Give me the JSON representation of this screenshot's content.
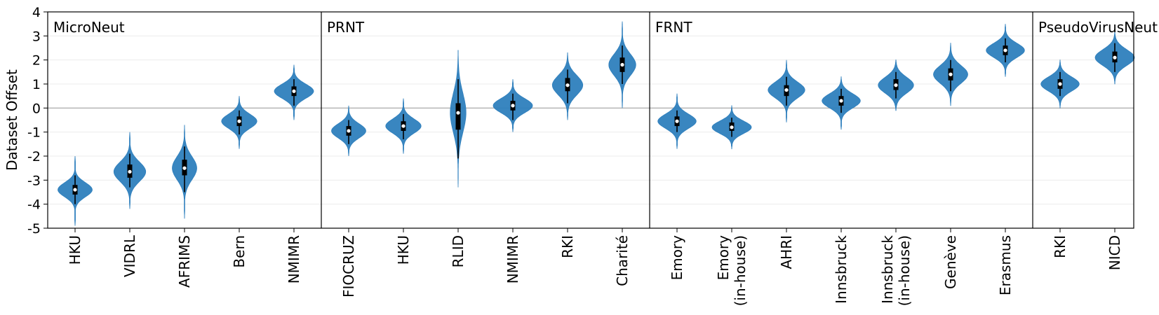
{
  "chart_data": {
    "type": "violin",
    "ylabel": "Dataset Offset",
    "ylim": [
      -5,
      4
    ],
    "yticks": [
      "4",
      "3",
      "2",
      "1",
      "0",
      "-1",
      "-2",
      "-3",
      "-4",
      "-5"
    ],
    "ytick_values": [
      4,
      3,
      2,
      1,
      0,
      -1,
      -2,
      -3,
      -4,
      -5
    ],
    "reference_line": 0,
    "grid": "horizontal",
    "violin_color": "#2e7fbd",
    "groups": [
      {
        "name": "MicroNeut",
        "items": [
          {
            "label": [
              "HKU"
            ],
            "median": -3.4,
            "q1": -3.6,
            "q3": -3.2,
            "wlo": -4.0,
            "whi": -2.8,
            "min": -4.9,
            "max": -2.0,
            "width": 0.7
          },
          {
            "label": [
              "VIDRL"
            ],
            "median": -2.65,
            "q1": -2.9,
            "q3": -2.35,
            "wlo": -3.3,
            "whi": -1.9,
            "min": -4.2,
            "max": -1.0,
            "width": 0.65
          },
          {
            "label": [
              "AFRIMS"
            ],
            "median": -2.5,
            "q1": -2.8,
            "q3": -2.15,
            "wlo": -3.5,
            "whi": -1.6,
            "min": -4.6,
            "max": -0.7,
            "width": 0.5
          },
          {
            "label": [
              "Bern"
            ],
            "median": -0.55,
            "q1": -0.75,
            "q3": -0.35,
            "wlo": -1.1,
            "whi": -0.1,
            "min": -1.7,
            "max": 0.5,
            "width": 0.72
          },
          {
            "label": [
              "NMIMR"
            ],
            "median": 0.7,
            "q1": 0.5,
            "q3": 0.9,
            "wlo": 0.1,
            "whi": 1.2,
            "min": -0.5,
            "max": 1.8,
            "width": 0.8
          }
        ]
      },
      {
        "name": "PRNT",
        "items": [
          {
            "label": [
              "FIOCRUZ"
            ],
            "median": -0.95,
            "q1": -1.15,
            "q3": -0.75,
            "wlo": -1.5,
            "whi": -0.5,
            "min": -2.0,
            "max": 0.1,
            "width": 0.7
          },
          {
            "label": [
              "HKU"
            ],
            "median": -0.75,
            "q1": -0.95,
            "q3": -0.55,
            "wlo": -1.3,
            "whi": -0.25,
            "min": -1.9,
            "max": 0.4,
            "width": 0.72
          },
          {
            "label": [
              "RLID"
            ],
            "median": -0.2,
            "q1": -0.9,
            "q3": 0.2,
            "wlo": -2.1,
            "whi": 1.2,
            "min": -3.3,
            "max": 2.4,
            "width": 0.32
          },
          {
            "label": [
              "NMIMR"
            ],
            "median": 0.1,
            "q1": -0.1,
            "q3": 0.3,
            "wlo": -0.5,
            "whi": 0.6,
            "min": -1.0,
            "max": 1.2,
            "width": 0.8
          },
          {
            "label": [
              "RKI"
            ],
            "median": 0.95,
            "q1": 0.7,
            "q3": 1.25,
            "wlo": 0.2,
            "whi": 1.6,
            "min": -0.5,
            "max": 2.3,
            "width": 0.62
          },
          {
            "label": [
              "Charité"
            ],
            "median": 1.8,
            "q1": 1.5,
            "q3": 2.1,
            "wlo": 1.0,
            "whi": 2.6,
            "min": 0.0,
            "max": 3.6,
            "width": 0.55
          }
        ]
      },
      {
        "name": "FRNT",
        "items": [
          {
            "label": [
              "Emory"
            ],
            "median": -0.55,
            "q1": -0.75,
            "q3": -0.35,
            "wlo": -1.0,
            "whi": -0.1,
            "min": -1.7,
            "max": 0.6,
            "width": 0.78
          },
          {
            "label": [
              "Emory",
              "(in-house)"
            ],
            "median": -0.8,
            "q1": -0.95,
            "q3": -0.6,
            "wlo": -1.2,
            "whi": -0.4,
            "min": -1.7,
            "max": 0.1,
            "width": 0.8
          },
          {
            "label": [
              "AHRI"
            ],
            "median": 0.75,
            "q1": 0.5,
            "q3": 0.95,
            "wlo": 0.1,
            "whi": 1.3,
            "min": -0.6,
            "max": 2.0,
            "width": 0.75
          },
          {
            "label": [
              "Innsbruck"
            ],
            "median": 0.3,
            "q1": 0.1,
            "q3": 0.5,
            "wlo": -0.2,
            "whi": 0.8,
            "min": -0.9,
            "max": 1.3,
            "width": 0.78
          },
          {
            "label": [
              "Innsbruck",
              "(in-house)"
            ],
            "median": 0.95,
            "q1": 0.75,
            "q3": 1.2,
            "wlo": 0.4,
            "whi": 1.5,
            "min": -0.1,
            "max": 2.0,
            "width": 0.72
          },
          {
            "label": [
              "Genève"
            ],
            "median": 1.4,
            "q1": 1.15,
            "q3": 1.65,
            "wlo": 0.7,
            "whi": 2.0,
            "min": 0.1,
            "max": 2.7,
            "width": 0.7
          },
          {
            "label": [
              "Erasmus"
            ],
            "median": 2.4,
            "q1": 2.2,
            "q3": 2.6,
            "wlo": 1.9,
            "whi": 2.9,
            "min": 1.3,
            "max": 3.5,
            "width": 0.78
          }
        ]
      },
      {
        "name": "PseudoVirusNeut",
        "items": [
          {
            "label": [
              "RKI"
            ],
            "median": 1.0,
            "q1": 0.8,
            "q3": 1.2,
            "wlo": 0.5,
            "whi": 1.5,
            "min": 0.0,
            "max": 2.0,
            "width": 0.78
          },
          {
            "label": [
              "NICD"
            ],
            "median": 2.1,
            "q1": 1.9,
            "q3": 2.35,
            "wlo": 1.5,
            "whi": 2.7,
            "min": 1.0,
            "max": 3.2,
            "width": 0.8
          }
        ]
      }
    ]
  }
}
